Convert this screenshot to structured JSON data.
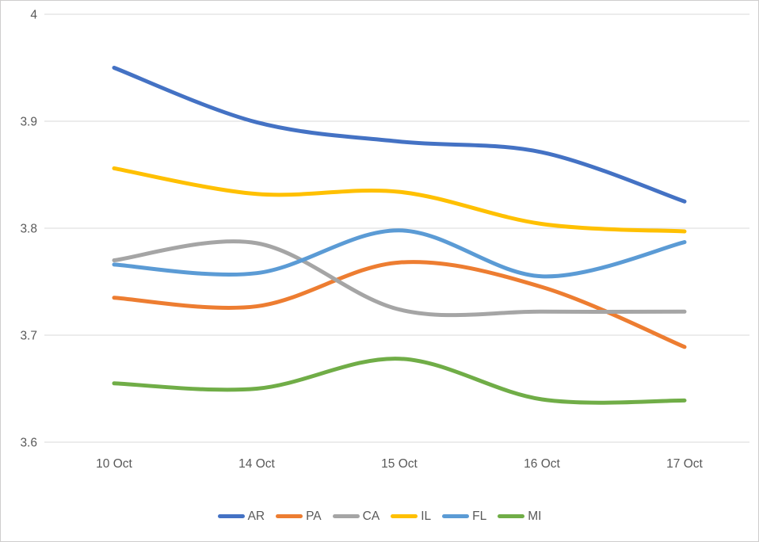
{
  "chart_data": {
    "type": "line",
    "title": "",
    "categories": [
      "10 Oct",
      "14 Oct",
      "15 Oct",
      "16 Oct",
      "17 Oct"
    ],
    "series": [
      {
        "name": "AR",
        "color": "#4472C4",
        "values": [
          3.95,
          3.899,
          3.881,
          3.871,
          3.825
        ]
      },
      {
        "name": "PA",
        "color": "#ED7D31",
        "values": [
          3.735,
          3.727,
          3.768,
          3.745,
          3.689
        ]
      },
      {
        "name": "CA",
        "color": "#A5A5A5",
        "values": [
          3.77,
          3.786,
          3.724,
          3.722,
          3.722
        ]
      },
      {
        "name": "IL",
        "color": "#FFC000",
        "values": [
          3.856,
          3.832,
          3.834,
          3.804,
          3.797
        ]
      },
      {
        "name": "FL",
        "color": "#5B9BD5",
        "values": [
          3.766,
          3.758,
          3.798,
          3.755,
          3.787
        ]
      },
      {
        "name": "MI",
        "color": "#70AD47",
        "values": [
          3.655,
          3.65,
          3.678,
          3.64,
          3.639
        ]
      }
    ],
    "y_axis": {
      "min": 3.6,
      "max": 4.0,
      "tick_step": 0.1,
      "tick_labels": [
        "4",
        "3.9",
        "3.8",
        "3.7",
        "3.6"
      ]
    },
    "x_axis": {
      "labels": [
        "10 Oct",
        "14 Oct",
        "15 Oct",
        "16 Oct",
        "17 Oct"
      ]
    },
    "grid": true,
    "line_smoothing": true,
    "legend_position": "bottom"
  },
  "colors": {
    "grid": "#D9D9D9",
    "axis_text": "#595959",
    "frame_border": "#CFCDCD",
    "background": "#FFFFFF"
  }
}
